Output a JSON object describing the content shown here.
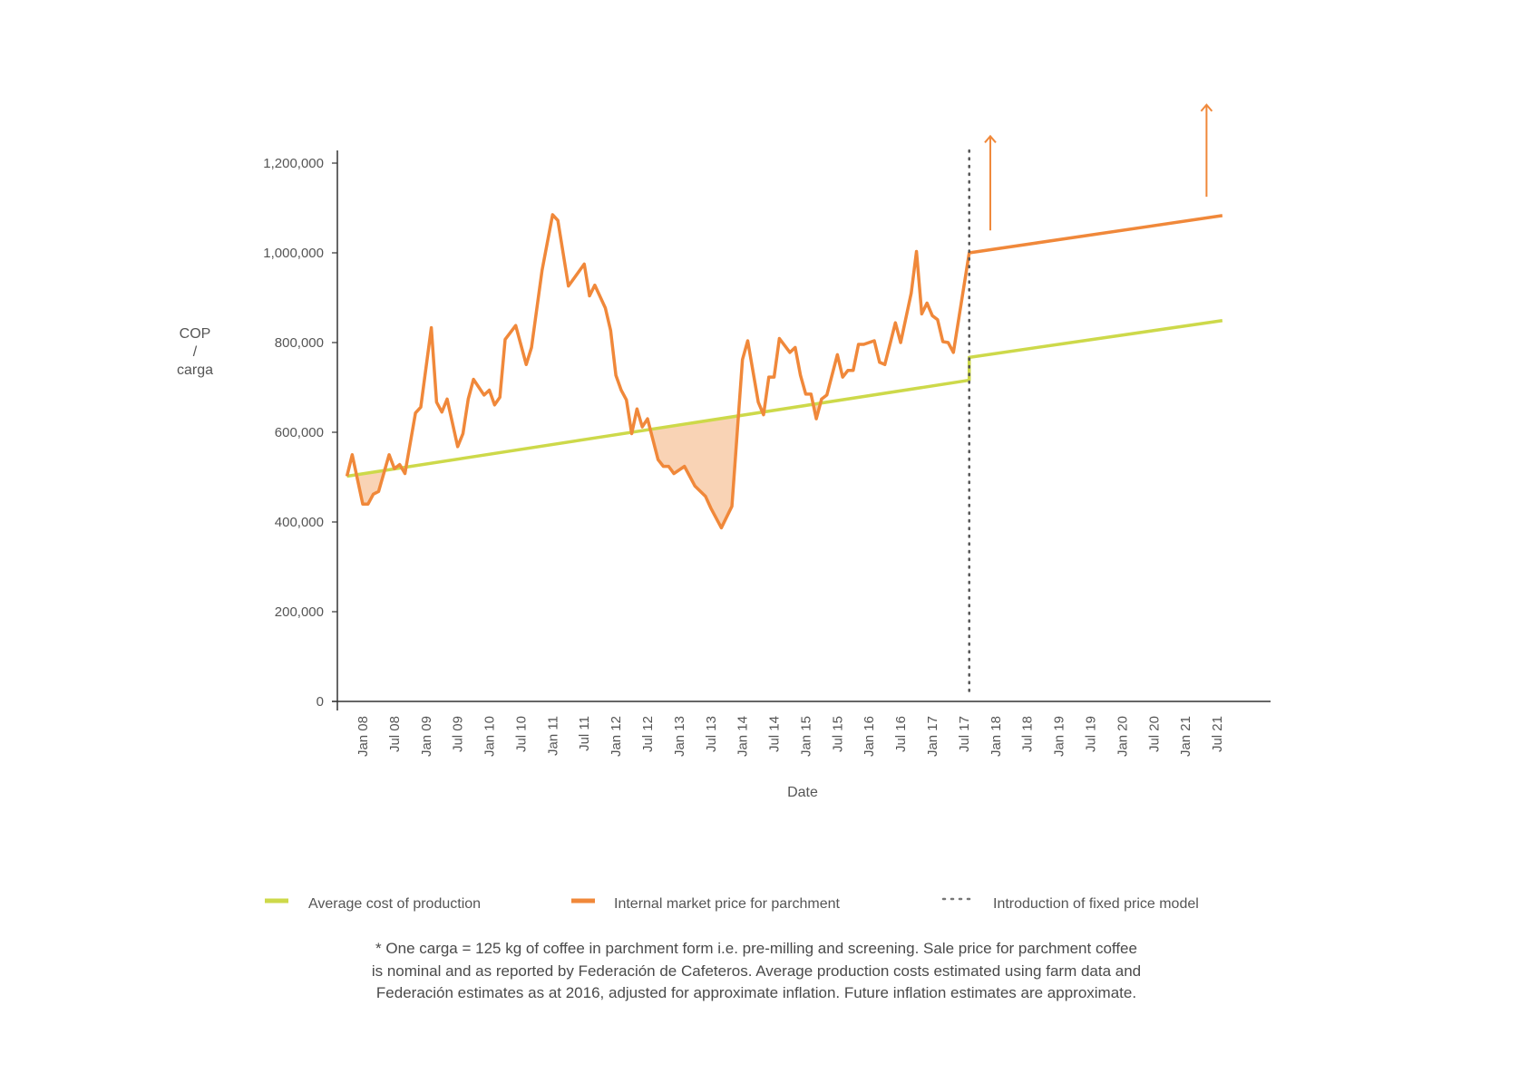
{
  "chart_data": {
    "type": "line",
    "title": "",
    "xlabel": "Date",
    "ylabel": [
      "COP",
      "/",
      "carga"
    ],
    "ylim": [
      0,
      1200000
    ],
    "y_ticks": [
      0,
      200000,
      400000,
      600000,
      800000,
      1000000,
      1200000
    ],
    "y_tick_labels": [
      "0",
      "200,000",
      "400,000",
      "600,000",
      "800,000",
      "1,000,000",
      "1,200,000"
    ],
    "x_tick_dates": [
      "2008-01",
      "2008-07",
      "2009-01",
      "2009-07",
      "2010-01",
      "2010-07",
      "2011-01",
      "2011-07",
      "2012-01",
      "2012-07",
      "2013-01",
      "2013-07",
      "2014-01",
      "2014-07",
      "2015-01",
      "2015-07",
      "2016-01",
      "2016-07",
      "2017-01",
      "2017-07",
      "2018-01",
      "2018-07",
      "2019-01",
      "2019-07",
      "2020-01",
      "2020-07",
      "2021-01",
      "2021-07"
    ],
    "x_tick_labels": [
      "Jan 08",
      "Jul 08",
      "Jan 09",
      "Jul 09",
      "Jan 10",
      "Jul 10",
      "Jan 11",
      "Jul 11",
      "Jan 12",
      "Jul 12",
      "Jan 13",
      "Jul 13",
      "Jan 14",
      "Jul 14",
      "Jan 15",
      "Jul 15",
      "Jan 16",
      "Jul 16",
      "Jan 17",
      "Jul 17",
      "Jan 18",
      "Jul 18",
      "Jan 19",
      "Jul 19",
      "Jan 20",
      "Jul 20",
      "Jan 21",
      "Jul 21"
    ],
    "grid": false,
    "legend_placement": "bottom",
    "series": [
      {
        "name": "Average cost of production",
        "color": "#CDD94A",
        "points": [
          [
            "2007-10",
            502000
          ],
          [
            "2017-08",
            716000
          ],
          [
            "2017-08",
            767000
          ],
          [
            "2021-08",
            849000
          ]
        ]
      },
      {
        "name": "Internal market price for parchment",
        "color": "#F0883A",
        "points": [
          [
            "2007-10",
            502000
          ],
          [
            "2007-11",
            550000
          ],
          [
            "2008-01",
            440000
          ],
          [
            "2008-02",
            440000
          ],
          [
            "2008-03",
            462000
          ],
          [
            "2008-04",
            468000
          ],
          [
            "2008-06",
            550000
          ],
          [
            "2008-07",
            519000
          ],
          [
            "2008-08",
            528000
          ],
          [
            "2008-09",
            508000
          ],
          [
            "2008-11",
            643000
          ],
          [
            "2008-12",
            656000
          ],
          [
            "2009-02",
            833000
          ],
          [
            "2009-03",
            667000
          ],
          [
            "2009-04",
            645000
          ],
          [
            "2009-05",
            674000
          ],
          [
            "2009-07",
            568000
          ],
          [
            "2009-08",
            597000
          ],
          [
            "2009-09",
            674000
          ],
          [
            "2009-10",
            718000
          ],
          [
            "2009-12",
            683000
          ],
          [
            "2010-01",
            694000
          ],
          [
            "2010-02",
            661000
          ],
          [
            "2010-03",
            678000
          ],
          [
            "2010-04",
            807000
          ],
          [
            "2010-06",
            838000
          ],
          [
            "2010-08",
            751000
          ],
          [
            "2010-09",
            789000
          ],
          [
            "2010-11",
            961000
          ],
          [
            "2011-01",
            1085000
          ],
          [
            "2011-02",
            1072000
          ],
          [
            "2011-04",
            926000
          ],
          [
            "2011-07",
            975000
          ],
          [
            "2011-08",
            904000
          ],
          [
            "2011-09",
            928000
          ],
          [
            "2011-11",
            877000
          ],
          [
            "2011-12",
            827000
          ],
          [
            "2012-01",
            727000
          ],
          [
            "2012-02",
            694000
          ],
          [
            "2012-03",
            672000
          ],
          [
            "2012-04",
            597000
          ],
          [
            "2012-05",
            652000
          ],
          [
            "2012-06",
            612000
          ],
          [
            "2012-07",
            630000
          ],
          [
            "2012-09",
            539000
          ],
          [
            "2012-10",
            524000
          ],
          [
            "2012-11",
            524000
          ],
          [
            "2012-12",
            508000
          ],
          [
            "2013-02",
            524000
          ],
          [
            "2013-03",
            502000
          ],
          [
            "2013-04",
            480000
          ],
          [
            "2013-06",
            457000
          ],
          [
            "2013-07",
            431000
          ],
          [
            "2013-09",
            387000
          ],
          [
            "2013-11",
            435000
          ],
          [
            "2014-01",
            762000
          ],
          [
            "2014-02",
            804000
          ],
          [
            "2014-04",
            667000
          ],
          [
            "2014-05",
            639000
          ],
          [
            "2014-06",
            723000
          ],
          [
            "2014-07",
            723000
          ],
          [
            "2014-08",
            809000
          ],
          [
            "2014-10",
            778000
          ],
          [
            "2014-11",
            789000
          ],
          [
            "2014-12",
            727000
          ],
          [
            "2015-01",
            685000
          ],
          [
            "2015-02",
            685000
          ],
          [
            "2015-03",
            630000
          ],
          [
            "2015-04",
            674000
          ],
          [
            "2015-05",
            683000
          ],
          [
            "2015-07",
            773000
          ],
          [
            "2015-08",
            723000
          ],
          [
            "2015-09",
            738000
          ],
          [
            "2015-10",
            738000
          ],
          [
            "2015-11",
            796000
          ],
          [
            "2015-12",
            796000
          ],
          [
            "2016-02",
            804000
          ],
          [
            "2016-03",
            756000
          ],
          [
            "2016-04",
            751000
          ],
          [
            "2016-06",
            844000
          ],
          [
            "2016-07",
            800000
          ],
          [
            "2016-09",
            910000
          ],
          [
            "2016-10",
            1003000
          ],
          [
            "2016-11",
            864000
          ],
          [
            "2016-12",
            888000
          ],
          [
            "2017-01",
            860000
          ],
          [
            "2017-02",
            851000
          ],
          [
            "2017-03",
            802000
          ],
          [
            "2017-04",
            800000
          ],
          [
            "2017-05",
            778000
          ],
          [
            "2017-08",
            1000000
          ],
          [
            "2021-08",
            1083000
          ]
        ]
      }
    ],
    "shaded_region": {
      "description_color": "#F9D3B5",
      "rule": "price below cost"
    },
    "vertical_marker": {
      "name": "Introduction of fixed price model",
      "date": "2017-08",
      "style": "dotted",
      "color": "#555555"
    },
    "arrows": [
      {
        "date": "2017-12",
        "from": 1050000,
        "to": 1260000,
        "color": "#F0883A"
      },
      {
        "date": "2021-05",
        "from": 1125000,
        "to": 1330000,
        "color": "#F0883A"
      }
    ]
  },
  "legend": [
    {
      "label": "Average cost of production",
      "style": "solid",
      "color": "#CDD94A"
    },
    {
      "label": "Internal market price for parchment",
      "style": "solid",
      "color": "#F0883A"
    },
    {
      "label": "Introduction of fixed price model",
      "style": "dotted",
      "color": "#777777"
    }
  ],
  "footnote": [
    "* One carga = 125 kg of coffee in parchment form i.e. pre-milling and screening. Sale price for parchment coffee",
    "is nominal and as reported by Federación de Cafeteros. Average production costs estimated using farm data and",
    "Federación estimates as at 2016, adjusted for approximate inflation. Future inflation estimates are approximate."
  ]
}
